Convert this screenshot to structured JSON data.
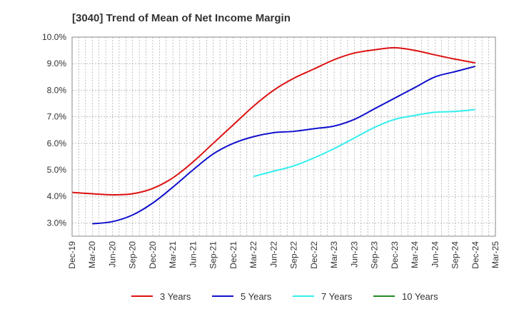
{
  "chart_data": {
    "type": "line",
    "title": "[3040]  Trend of Mean of Net Income Margin",
    "xlabel": "",
    "ylabel": "",
    "x_tick_labels": [
      "Dec-19",
      "Mar-20",
      "Jun-20",
      "Sep-20",
      "Dec-20",
      "Mar-21",
      "Jun-21",
      "Sep-21",
      "Dec-21",
      "Mar-22",
      "Jun-22",
      "Sep-22",
      "Dec-22",
      "Mar-23",
      "Jun-23",
      "Sep-23",
      "Dec-23",
      "Mar-24",
      "Jun-24",
      "Sep-24",
      "Dec-24",
      "Mar-25"
    ],
    "y_tick_labels": [
      "3.0%",
      "4.0%",
      "5.0%",
      "6.0%",
      "7.0%",
      "8.0%",
      "9.0%",
      "10.0%"
    ],
    "y_ticks": [
      3,
      4,
      5,
      6,
      7,
      8,
      9,
      10
    ],
    "ylim": [
      2.5,
      10.0
    ],
    "grid": true,
    "legend_position": "bottom",
    "series": [
      {
        "name": "3 Years",
        "color": "#dd1111",
        "values": [
          4.15,
          4.1,
          4.06,
          4.1,
          4.3,
          4.7,
          5.3,
          6.0,
          6.7,
          7.4,
          8.0,
          8.45,
          8.8,
          9.15,
          9.4,
          9.52,
          9.6,
          9.5,
          9.33,
          9.17,
          9.03,
          null
        ]
      },
      {
        "name": "5 Years",
        "color": "#1111cc",
        "values": [
          null,
          2.97,
          3.05,
          3.3,
          3.75,
          4.35,
          5.0,
          5.6,
          6.0,
          6.25,
          6.4,
          6.45,
          6.55,
          6.65,
          6.9,
          7.3,
          7.7,
          8.1,
          8.5,
          8.7,
          8.9,
          null
        ]
      },
      {
        "name": "7 Years",
        "color": "#33eeee",
        "values": [
          null,
          null,
          null,
          null,
          null,
          null,
          null,
          null,
          null,
          4.75,
          4.95,
          5.15,
          5.45,
          5.8,
          6.2,
          6.6,
          6.9,
          7.05,
          7.17,
          7.2,
          7.27,
          null
        ]
      },
      {
        "name": "10 Years",
        "color": "#228822",
        "values": [
          null,
          null,
          null,
          null,
          null,
          null,
          null,
          null,
          null,
          null,
          null,
          null,
          null,
          null,
          null,
          null,
          null,
          null,
          null,
          null,
          null,
          null
        ]
      }
    ]
  }
}
